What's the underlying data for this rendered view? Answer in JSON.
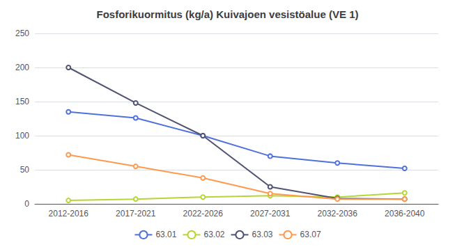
{
  "chart_data": {
    "type": "line",
    "title": "Fosforikuormitus (kg/a) Kuivajoen vesistöalue (VE 1)",
    "categories": [
      "2012-2016",
      "2017-2021",
      "2022-2026",
      "2027-2031",
      "2032-2036",
      "2036-2040"
    ],
    "series": [
      {
        "name": "63.01",
        "values": [
          135,
          126,
          100,
          70,
          60,
          52
        ]
      },
      {
        "name": "63.02",
        "values": [
          5,
          7,
          10,
          12,
          10,
          16
        ]
      },
      {
        "name": "63.03",
        "values": [
          200,
          148,
          100,
          25,
          8,
          7
        ]
      },
      {
        "name": "63.07",
        "values": [
          72,
          55,
          38,
          15,
          7,
          7
        ]
      }
    ],
    "ylim": [
      0,
      250
    ],
    "yticks": [
      0,
      50,
      100,
      150,
      200,
      250
    ],
    "grid": true,
    "legend": "bottom"
  }
}
